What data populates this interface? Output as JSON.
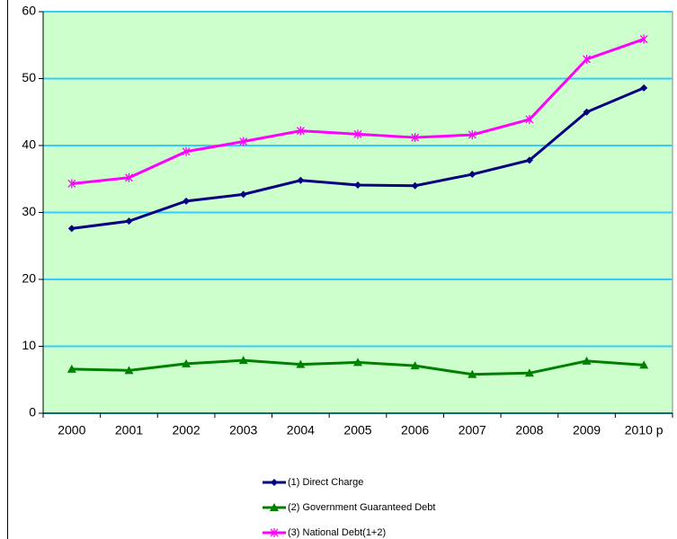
{
  "chart_data": {
    "type": "line",
    "categories": [
      "2000",
      "2001",
      "2002",
      "2003",
      "2004",
      "2005",
      "2006",
      "2007",
      "2008",
      "2009",
      "2010 p"
    ],
    "series": [
      {
        "name": "(1) Direct Charge",
        "color": "#000080",
        "marker": "diamond",
        "values": [
          27.6,
          28.7,
          31.7,
          32.7,
          34.8,
          34.1,
          34.0,
          35.7,
          37.8,
          45.0,
          48.6
        ]
      },
      {
        "name": "(2) Government Guaranteed Debt",
        "color": "#008000",
        "marker": "triangle",
        "values": [
          6.6,
          6.4,
          7.4,
          7.9,
          7.3,
          7.6,
          7.1,
          5.8,
          6.0,
          7.8,
          7.2
        ]
      },
      {
        "name": "(3) National Debt(1+2)",
        "color": "#ff00ff",
        "marker": "star",
        "values": [
          34.3,
          35.2,
          39.1,
          40.6,
          42.2,
          41.7,
          41.2,
          41.6,
          43.9,
          52.9,
          55.9
        ]
      }
    ],
    "ylim": [
      0,
      60
    ],
    "yticks": [
      0,
      10,
      20,
      30,
      40,
      50,
      60
    ],
    "grid": true,
    "plot_background": "#ccffcc",
    "grid_color": "#33ccff"
  }
}
